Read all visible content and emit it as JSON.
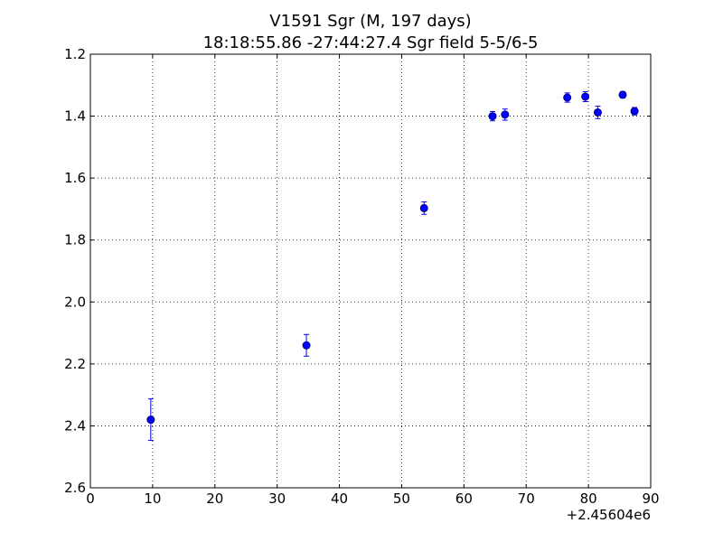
{
  "chart_data": {
    "type": "scatter",
    "title_line1": "V1591 Sgr  (M, 197 days)",
    "title_line2": "18:18:55.86 -27:44:27.4 Sgr field 5-5/6-5",
    "xlabel": "",
    "ylabel": "",
    "x_offset_label": "+2.45604e6",
    "xlim": [
      0,
      90
    ],
    "ylim": [
      2.6,
      1.2
    ],
    "y_inverted": true,
    "grid": true,
    "grid_style": "dotted",
    "x_ticks": [
      0,
      10,
      20,
      30,
      40,
      50,
      60,
      70,
      80,
      90
    ],
    "x_tick_labels": [
      "0",
      "10",
      "20",
      "30",
      "40",
      "50",
      "60",
      "70",
      "80",
      "90"
    ],
    "y_ticks": [
      1.2,
      1.4,
      1.6,
      1.8,
      2.0,
      2.2,
      2.4,
      2.6
    ],
    "y_tick_labels": [
      "1.2",
      "1.4",
      "1.6",
      "1.8",
      "2.0",
      "2.2",
      "2.4",
      "2.6"
    ],
    "marker_color": "#0000ff",
    "marker_edge_color": "#000080",
    "points": [
      {
        "x": 9.7,
        "y": 2.38,
        "err": 0.067
      },
      {
        "x": 34.7,
        "y": 2.14,
        "err": 0.035
      },
      {
        "x": 53.6,
        "y": 1.697,
        "err": 0.02
      },
      {
        "x": 64.6,
        "y": 1.4,
        "err": 0.015
      },
      {
        "x": 66.6,
        "y": 1.395,
        "err": 0.018
      },
      {
        "x": 76.6,
        "y": 1.34,
        "err": 0.015
      },
      {
        "x": 79.5,
        "y": 1.337,
        "err": 0.016
      },
      {
        "x": 81.5,
        "y": 1.388,
        "err": 0.02
      },
      {
        "x": 85.5,
        "y": 1.331,
        "err": 0.01
      },
      {
        "x": 87.4,
        "y": 1.384,
        "err": 0.012
      }
    ]
  }
}
